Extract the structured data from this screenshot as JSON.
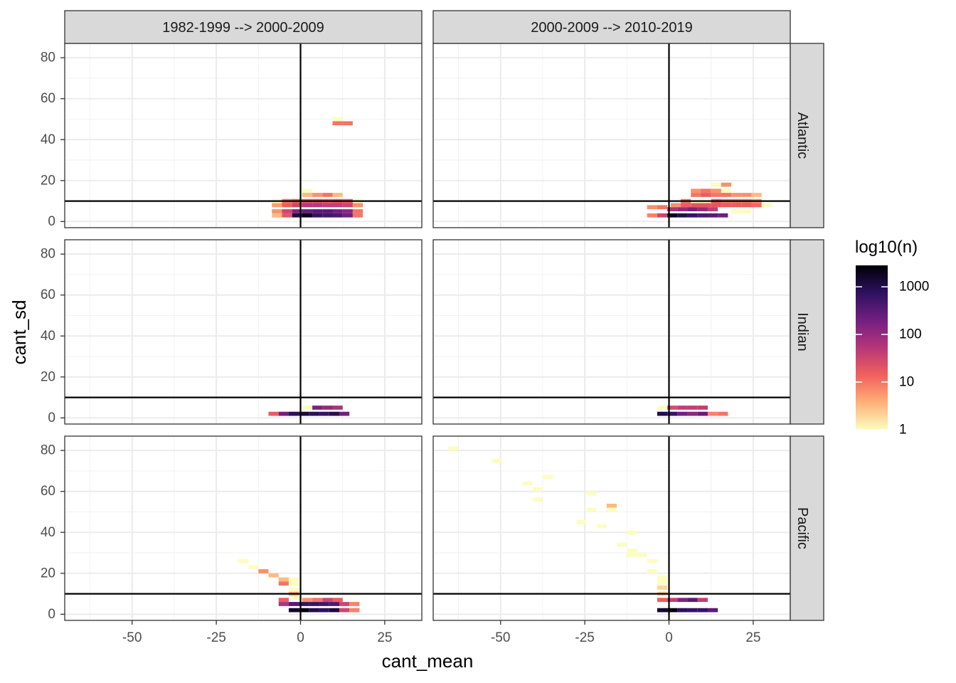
{
  "chart_data": {
    "type": "heatmap",
    "xlabel": "cant_mean",
    "ylabel": "cant_sd",
    "xlim": [
      -70,
      36
    ],
    "ylim": [
      -3,
      87
    ],
    "x_ticks": [
      -50,
      -25,
      0,
      25
    ],
    "x_tick_labels": [
      "-50",
      "-25",
      "0",
      "25"
    ],
    "y_ticks": [
      0,
      20,
      40,
      60,
      80
    ],
    "y_tick_labels": [
      "0",
      "20",
      "40",
      "60",
      "80"
    ],
    "bin_width": 3,
    "bin_height": 2,
    "reference_lines": {
      "x": 0,
      "y": 10
    },
    "columns": [
      "1982-1999 --> 2000-2009",
      "2000-2009 --> 2010-2019"
    ],
    "rows": [
      "Atlantic",
      "Indian",
      "Pacific"
    ],
    "legend": {
      "title": "log10(n)",
      "log_min": 0,
      "log_max": 3.45,
      "breaks": [
        0,
        1,
        2,
        3
      ],
      "break_labels": [
        "1",
        "10",
        "100",
        "1000"
      ],
      "palette": [
        "#fcfdbf",
        "#feb078",
        "#f1605d",
        "#b63679",
        "#721f81",
        "#2d1160",
        "#000004"
      ]
    },
    "panels": [
      {
        "row": "Atlantic",
        "column": "1982-1999 --> 2000-2009",
        "cells": [
          [
            11,
            50,
            0
          ],
          [
            11,
            48,
            1
          ],
          [
            14,
            48,
            1
          ],
          [
            2,
            15,
            0
          ],
          [
            2,
            13,
            0.5
          ],
          [
            5,
            13,
            0.8
          ],
          [
            8,
            13,
            1
          ],
          [
            11,
            13,
            0.5
          ],
          [
            -7,
            10,
            0
          ],
          [
            -4,
            10,
            1
          ],
          [
            -1,
            10,
            1.2
          ],
          [
            2,
            10,
            1.3
          ],
          [
            5,
            10,
            1.3
          ],
          [
            8,
            10,
            1.2
          ],
          [
            11,
            10,
            1.3
          ],
          [
            14,
            10,
            1.2
          ],
          [
            17,
            10,
            0
          ],
          [
            -7,
            8,
            0.7
          ],
          [
            -4,
            8,
            1.2
          ],
          [
            -1,
            8,
            1.5
          ],
          [
            2,
            8,
            1.7
          ],
          [
            5,
            8,
            1.7
          ],
          [
            8,
            8,
            1.6
          ],
          [
            11,
            8,
            1.6
          ],
          [
            14,
            8,
            1.5
          ],
          [
            17,
            8,
            0.8
          ],
          [
            -7,
            5,
            0.8
          ],
          [
            -4,
            5,
            1.5
          ],
          [
            -1,
            5,
            2.2
          ],
          [
            2,
            5,
            2.4
          ],
          [
            5,
            5,
            2.5
          ],
          [
            8,
            5,
            2.5
          ],
          [
            11,
            5,
            2.3
          ],
          [
            14,
            5,
            2.1
          ],
          [
            17,
            5,
            1
          ],
          [
            -7,
            3,
            0.5
          ],
          [
            -4,
            3,
            1.3
          ],
          [
            -1,
            3,
            3
          ],
          [
            2,
            3,
            3.3
          ],
          [
            5,
            3,
            2.8
          ],
          [
            8,
            3,
            2.7
          ],
          [
            11,
            3,
            2.6
          ],
          [
            14,
            3,
            2.3
          ],
          [
            17,
            3,
            1
          ]
        ]
      },
      {
        "row": "Atlantic",
        "column": "2000-2009 --> 2010-2019",
        "cells": [
          [
            14,
            18,
            0
          ],
          [
            17,
            18,
            0.8
          ],
          [
            8,
            15,
            0.8
          ],
          [
            11,
            15,
            1
          ],
          [
            14,
            15,
            0.8
          ],
          [
            17,
            15,
            0
          ],
          [
            8,
            13,
            1
          ],
          [
            11,
            13,
            1.2
          ],
          [
            14,
            13,
            1
          ],
          [
            17,
            13,
            1
          ],
          [
            20,
            13,
            0.8
          ],
          [
            23,
            13,
            0.8
          ],
          [
            26,
            13,
            0.5
          ],
          [
            5,
            10,
            1
          ],
          [
            8,
            10,
            0
          ],
          [
            11,
            10,
            0
          ],
          [
            14,
            10,
            1.2
          ],
          [
            17,
            10,
            1
          ],
          [
            20,
            10,
            1
          ],
          [
            23,
            10,
            1
          ],
          [
            26,
            10,
            0.8
          ],
          [
            2,
            8,
            0.8
          ],
          [
            5,
            8,
            1.2
          ],
          [
            8,
            8,
            1.3
          ],
          [
            11,
            8,
            1.3
          ],
          [
            14,
            8,
            1.3
          ],
          [
            17,
            8,
            1.2
          ],
          [
            20,
            8,
            1.2
          ],
          [
            23,
            8,
            1.2
          ],
          [
            26,
            8,
            1.1
          ],
          [
            29,
            8,
            0
          ],
          [
            -5,
            7,
            0.8
          ],
          [
            -2,
            7,
            1
          ],
          [
            1,
            6,
            1.8
          ],
          [
            4,
            6,
            2
          ],
          [
            7,
            6,
            2.2
          ],
          [
            10,
            6,
            2
          ],
          [
            13,
            6,
            1.6
          ],
          [
            20,
            5,
            0
          ],
          [
            23,
            5,
            0
          ],
          [
            -5,
            3,
            0.9
          ],
          [
            -2,
            3,
            1.5
          ],
          [
            1,
            3,
            3.3
          ],
          [
            4,
            3,
            3
          ],
          [
            7,
            3,
            2.8
          ],
          [
            10,
            3,
            2.6
          ],
          [
            13,
            3,
            2.5
          ],
          [
            16,
            3,
            2.3
          ]
        ]
      },
      {
        "row": "Indian",
        "column": "1982-1999 --> 2000-2009",
        "cells": [
          [
            2,
            5,
            0
          ],
          [
            5,
            5,
            2.2
          ],
          [
            8,
            5,
            2
          ],
          [
            11,
            5,
            1.8
          ],
          [
            -8,
            2,
            1.2
          ],
          [
            -5,
            2,
            2.3
          ],
          [
            -2,
            2,
            2.9
          ],
          [
            1,
            2,
            3.1
          ],
          [
            4,
            2,
            2.9
          ],
          [
            7,
            2,
            2.8
          ],
          [
            10,
            2,
            3
          ],
          [
            13,
            2,
            2.3
          ]
        ]
      },
      {
        "row": "Indian",
        "column": "2000-2009 --> 2010-2019",
        "cells": [
          [
            -2,
            5,
            0
          ],
          [
            1,
            5,
            1.4
          ],
          [
            4,
            5,
            1.6
          ],
          [
            7,
            5,
            1.6
          ],
          [
            10,
            5,
            1.6
          ],
          [
            -2,
            2,
            3
          ],
          [
            1,
            2,
            2.8
          ],
          [
            4,
            2,
            2.3
          ],
          [
            7,
            2,
            2.1
          ],
          [
            10,
            2,
            2.4
          ],
          [
            13,
            2,
            0.9
          ],
          [
            16,
            2,
            1
          ]
        ]
      },
      {
        "row": "Pacific",
        "column": "1982-1999 --> 2000-2009",
        "cells": [
          [
            -17,
            26,
            0
          ],
          [
            -14,
            23,
            0
          ],
          [
            -11,
            21,
            0.8
          ],
          [
            -8,
            19,
            0.5
          ],
          [
            -5,
            17,
            0.5
          ],
          [
            -2,
            17,
            0
          ],
          [
            -5,
            15,
            1
          ],
          [
            -2,
            15,
            0
          ],
          [
            -2,
            12,
            0
          ],
          [
            -2,
            10,
            0.6
          ],
          [
            -1,
            8,
            0
          ],
          [
            -5,
            7,
            1.2
          ],
          [
            2,
            7,
            0.8
          ],
          [
            5,
            7,
            1
          ],
          [
            8,
            7,
            1.5
          ],
          [
            11,
            7,
            1.2
          ],
          [
            -5,
            5,
            1.8
          ],
          [
            -2,
            5,
            2.5
          ],
          [
            1,
            5,
            2.8
          ],
          [
            4,
            5,
            2.8
          ],
          [
            7,
            5,
            2.7
          ],
          [
            10,
            5,
            2.6
          ],
          [
            13,
            5,
            1.5
          ],
          [
            16,
            5,
            0.9
          ],
          [
            -2,
            2,
            3.2
          ],
          [
            1,
            2,
            3.4
          ],
          [
            4,
            2,
            3
          ],
          [
            7,
            2,
            2.9
          ],
          [
            10,
            2,
            3.1
          ],
          [
            13,
            2,
            1.5
          ],
          [
            16,
            2,
            0.9
          ]
        ]
      },
      {
        "row": "Pacific",
        "column": "2000-2009 --> 2010-2019",
        "cells": [
          [
            -64,
            81,
            0
          ],
          [
            -51,
            75,
            0
          ],
          [
            -36,
            67,
            0
          ],
          [
            -42,
            64,
            0
          ],
          [
            -39,
            61,
            0
          ],
          [
            -39,
            56,
            0
          ],
          [
            -23,
            59,
            0
          ],
          [
            -17,
            53,
            0.5
          ],
          [
            -23,
            51,
            0
          ],
          [
            -17,
            51,
            0
          ],
          [
            -26,
            45,
            0
          ],
          [
            -20,
            43,
            0
          ],
          [
            -11,
            40,
            0
          ],
          [
            -14,
            34,
            0
          ],
          [
            -11,
            31,
            0
          ],
          [
            -8,
            29,
            0
          ],
          [
            -11,
            29,
            0
          ],
          [
            -5,
            26,
            0
          ],
          [
            -5,
            21,
            0
          ],
          [
            -2,
            18,
            0
          ],
          [
            -2,
            16,
            0
          ],
          [
            -2,
            15,
            0
          ],
          [
            -2,
            13,
            0.3
          ],
          [
            -2,
            10,
            0.3
          ],
          [
            -2,
            7,
            1.2
          ],
          [
            1,
            7,
            1.6
          ],
          [
            4,
            7,
            2.2
          ],
          [
            7,
            7,
            2.5
          ],
          [
            10,
            7,
            1.6
          ],
          [
            -2,
            2,
            3.2
          ],
          [
            1,
            2,
            3.4
          ],
          [
            4,
            2,
            2.9
          ],
          [
            7,
            2,
            2.8
          ],
          [
            10,
            2,
            2.8
          ],
          [
            13,
            2,
            2.5
          ]
        ]
      }
    ]
  }
}
